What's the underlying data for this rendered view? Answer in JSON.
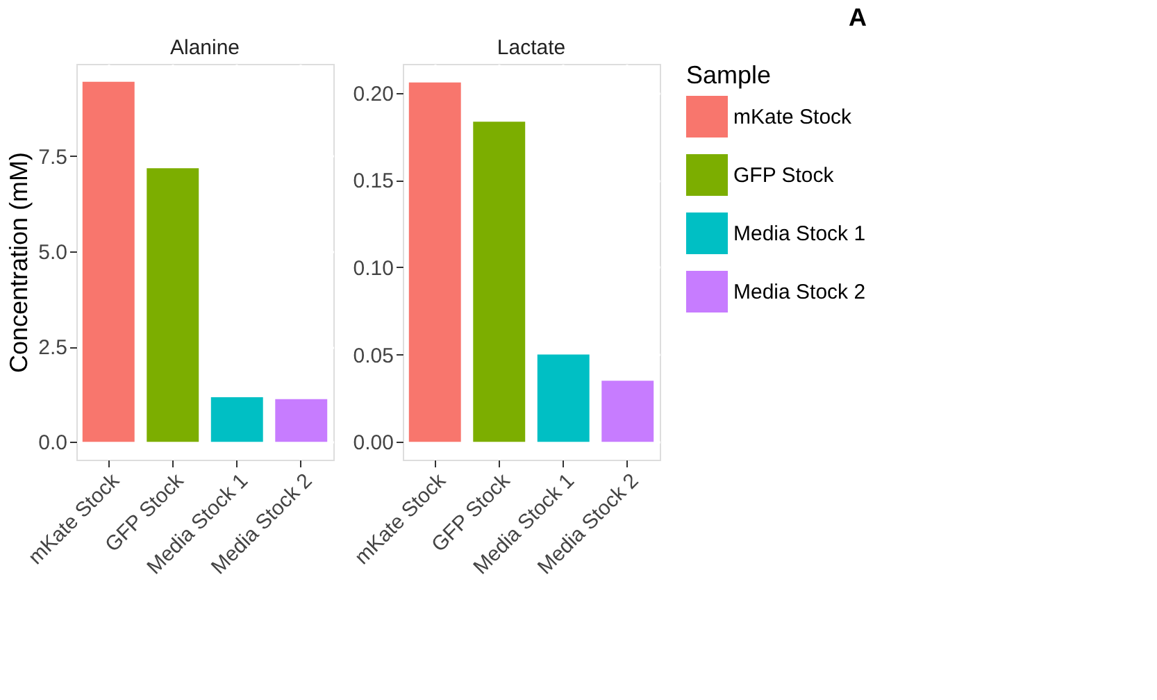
{
  "chart_data": [
    {
      "type": "bar",
      "title": "Alanine",
      "ylabel": "Concentration (mM)",
      "categories": [
        "mKate Stock",
        "GFP Stock",
        "Media Stock 1",
        "Media Stock 2"
      ],
      "ylim": [
        -0.47,
        9.92
      ],
      "yticks": [
        {
          "value": 0,
          "label": "0.0"
        },
        2.5,
        {
          "value": 5,
          "label": "5.0"
        },
        7.5
      ],
      "grid": true,
      "legend": "right",
      "legend_title": "Sample",
      "series": [
        {
          "name": "mKate Stock",
          "color": "#f8766d",
          "values": [
            9.45,
            null,
            null,
            null
          ]
        },
        {
          "name": "GFP Stock",
          "color": "#7cae00",
          "values": [
            null,
            7.18,
            null,
            null
          ]
        },
        {
          "name": "Media Stock 1",
          "color": "#00bfc4",
          "values": [
            null,
            null,
            1.17,
            null
          ]
        },
        {
          "name": "Media Stock 2",
          "color": "#c77cff",
          "values": [
            null,
            null,
            null,
            1.12
          ]
        }
      ]
    },
    {
      "type": "bar",
      "title": "Lactate",
      "categories": [
        "mKate Stock",
        "GFP Stock",
        "Media Stock 1",
        "Media Stock 2"
      ],
      "ylim": [
        -0.0103,
        0.2166
      ],
      "yticks": [
        {
          "value": 0,
          "label": "0.00"
        },
        0.05,
        {
          "value": 0.1,
          "label": "0.10"
        },
        0.15,
        {
          "value": 0.2,
          "label": "0.20"
        }
      ],
      "grid": true,
      "legend": "right",
      "annotations": [
        "A"
      ],
      "series": [
        {
          "name": "mKate Stock",
          "color": "#f8766d",
          "values": [
            0.206,
            null,
            null,
            null
          ]
        },
        {
          "name": "GFP Stock",
          "color": "#7cae00",
          "values": [
            null,
            0.1835,
            null,
            null
          ]
        },
        {
          "name": "Media Stock 1",
          "color": "#00bfc4",
          "values": [
            null,
            null,
            0.05,
            null
          ]
        },
        {
          "name": "Media Stock 2",
          "color": "#c77cff",
          "values": [
            null,
            null,
            null,
            0.035
          ]
        }
      ]
    }
  ]
}
